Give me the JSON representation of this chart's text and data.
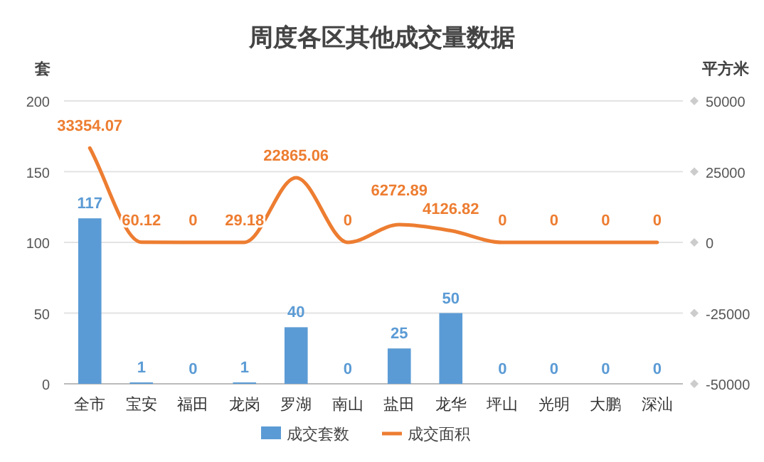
{
  "chart_data": {
    "type": "bar",
    "title": "周度各区其他成交量数据",
    "ylabel": "套",
    "y2label": "平方米",
    "categories": [
      "全市",
      "宝安",
      "福田",
      "龙岗",
      "罗湖",
      "南山",
      "盐田",
      "龙华",
      "坪山",
      "光明",
      "大鹏",
      "深汕"
    ],
    "series": [
      {
        "name": "成交套数",
        "color": "#5b9bd5",
        "values": [
          117,
          1,
          0,
          1,
          40,
          0,
          25,
          50,
          0,
          0,
          0,
          0
        ]
      },
      {
        "name": "成交面积",
        "type": "line",
        "axis": "y2",
        "color": "#ed7d31",
        "values": [
          33354.07,
          60.12,
          0,
          29.18,
          22865.06,
          0,
          6272.89,
          4126.82,
          0,
          0,
          0,
          0
        ]
      }
    ],
    "ylim": [
      0,
      200
    ],
    "yticks": [
      0,
      50,
      100,
      150,
      200
    ],
    "y2lim": [
      -50000,
      50000
    ],
    "y2ticks": [
      -50000,
      -25000,
      0,
      25000,
      50000
    ],
    "grid": "y",
    "legend": "bottom",
    "data_labels": true,
    "marker": "none",
    "line_style": "solid"
  }
}
